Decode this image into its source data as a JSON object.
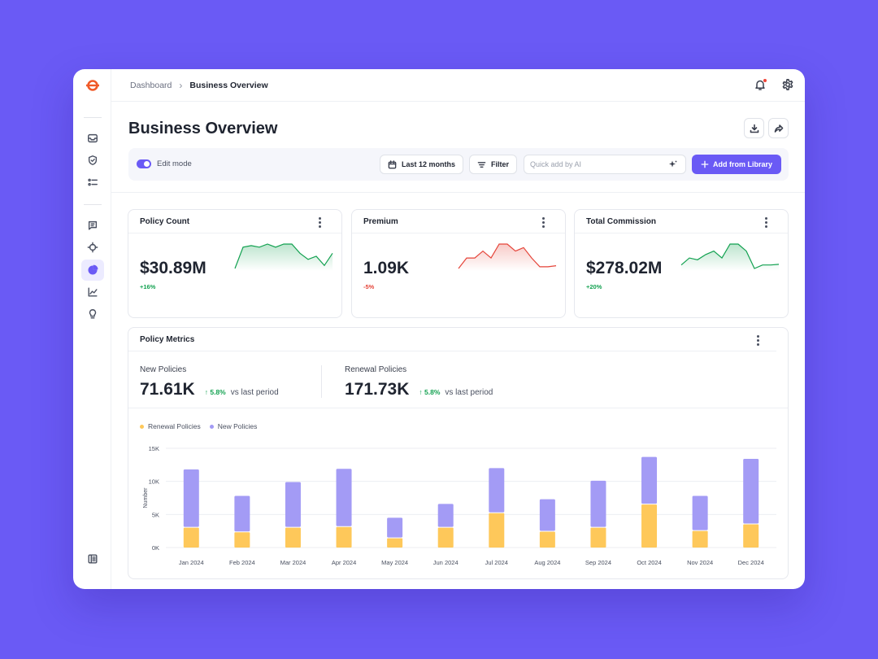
{
  "colors": {
    "accent": "#6a5af5",
    "renewal": "#fec85a",
    "new": "#a39bf5",
    "positive": "#12a150",
    "negative": "#e5453a"
  },
  "breadcrumb": {
    "parent": "Dashboard",
    "current": "Business Overview"
  },
  "page": {
    "title": "Business Overview"
  },
  "toolbar": {
    "edit_mode_label": "Edit mode",
    "edit_mode_on": true,
    "date_range_label": "Last 12 months",
    "filter_label": "Filter",
    "ai_placeholder": "Quick add by AI",
    "add_label": "Add from Library"
  },
  "cards": [
    {
      "title": "Policy Count",
      "value": "$30.89M",
      "change": "+16%",
      "trend": "up",
      "spark": [
        2,
        9,
        9.5,
        9,
        10,
        9,
        10,
        10,
        7,
        5,
        6,
        3,
        7
      ]
    },
    {
      "title": "Premium",
      "value": "1.09K",
      "change": "-5%",
      "trend": "down",
      "spark": [
        3,
        6,
        6,
        8,
        6,
        10,
        10,
        8,
        9,
        6,
        3.5,
        3.5,
        3.8
      ]
    },
    {
      "title": "Total Commission",
      "value": "$278.02M",
      "change": "+20%",
      "trend": "up",
      "spark": [
        4,
        6,
        5.5,
        7,
        8,
        6,
        10,
        10,
        8,
        3,
        4,
        4,
        4.2
      ]
    }
  ],
  "policy_metrics": {
    "title": "Policy Metrics",
    "new": {
      "label": "New Policies",
      "value": "71.61K",
      "delta": "5.8%",
      "vs": "vs last period"
    },
    "renewal": {
      "label": "Renewal Policies",
      "value": "171.73K",
      "delta": "5.8%",
      "vs": "vs last period"
    }
  },
  "chart_data": {
    "type": "bar",
    "stacked": true,
    "categories": [
      "Jan 2024",
      "Feb 2024",
      "Mar 2024",
      "Apr 2024",
      "May 2024",
      "Jun 2024",
      "Jul 2024",
      "Aug 2024",
      "Sep 2024",
      "Oct 2024",
      "Nov 2024",
      "Dec 2024"
    ],
    "series": [
      {
        "name": "Renewal Policies",
        "values": [
          3000,
          2300,
          3000,
          3100,
          1400,
          3000,
          5200,
          2400,
          3000,
          6500,
          2500,
          3500
        ]
      },
      {
        "name": "New Policies",
        "values": [
          8800,
          5500,
          6900,
          8800,
          3100,
          3600,
          6800,
          4900,
          7100,
          7200,
          5300,
          9900
        ]
      }
    ],
    "ylabel": "Number",
    "yticks": [
      "0K",
      "5K",
      "10K",
      "15K"
    ],
    "ylim": [
      0,
      15000
    ],
    "legend": "top-left",
    "grid": true
  }
}
